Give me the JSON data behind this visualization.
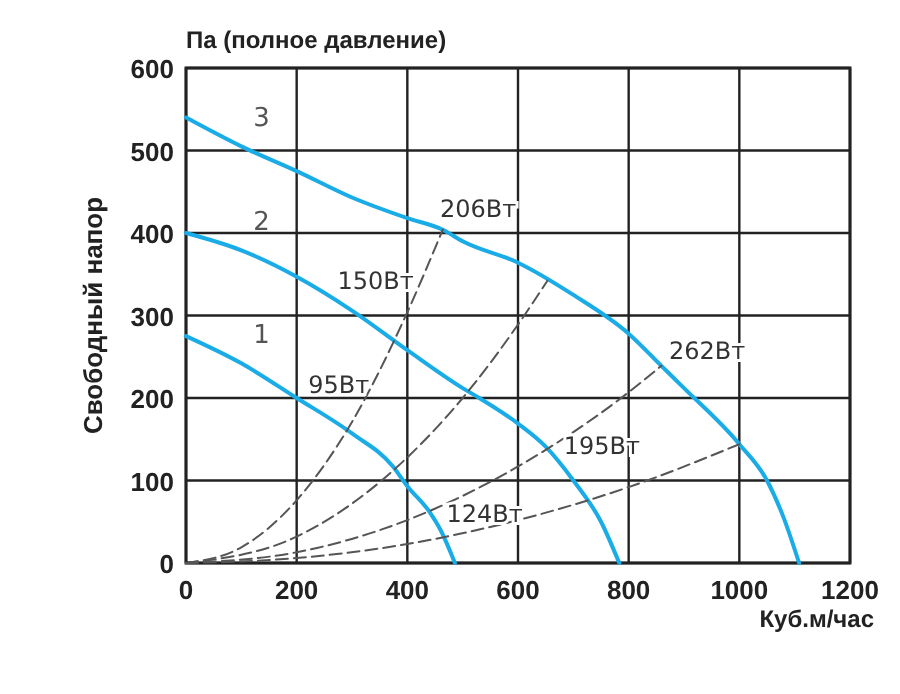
{
  "chart_data": {
    "type": "line",
    "title": "Па (полное давление)",
    "ylabel": "Свободный напор",
    "xlabel": "Куб.м/час",
    "xlim": [
      0,
      1200
    ],
    "xticks": [
      0,
      200,
      400,
      600,
      800,
      1000,
      1200
    ],
    "ylim": [
      0,
      600
    ],
    "yticks": [
      0,
      100,
      200,
      300,
      400,
      500,
      600
    ],
    "grid": true,
    "legend": false,
    "series": [
      {
        "name": "1",
        "color": "#1aace6",
        "x": [
          0,
          100,
          200,
          300,
          374,
          400,
          440,
          460,
          486
        ],
        "values": [
          275,
          242,
          200,
          157,
          117,
          93,
          62,
          40,
          0
        ]
      },
      {
        "name": "2",
        "color": "#1aace6",
        "x": [
          0,
          100,
          200,
          300,
          400,
          500,
          530,
          600,
          650,
          700,
          750,
          783
        ],
        "values": [
          400,
          379,
          347,
          306,
          258,
          212,
          200,
          169,
          141,
          100,
          50,
          0
        ]
      },
      {
        "name": "3",
        "color": "#1aace6",
        "x": [
          0,
          100,
          200,
          300,
          400,
          464,
          500,
          600,
          700,
          800,
          859,
          900,
          1000,
          1050,
          1080,
          1108
        ],
        "values": [
          540,
          505,
          475,
          443,
          418,
          404,
          390,
          364,
          325,
          278,
          239,
          212,
          144,
          100,
          55,
          0
        ]
      },
      {
        "color": "#555555",
        "line_style": "dashed",
        "x": [
          0,
          100,
          200,
          300,
          400,
          464
        ],
        "values": [
          0,
          19,
          76,
          171,
          304,
          404
        ]
      },
      {
        "color": "#555555",
        "line_style": "dashed",
        "x": [
          0,
          200,
          400,
          500,
          600,
          653
        ],
        "values": [
          0,
          32,
          128,
          200,
          289,
          342
        ]
      },
      {
        "color": "#555555",
        "line_style": "dashed",
        "x": [
          0,
          200,
          400,
          600,
          800,
          859
        ],
        "values": [
          0,
          13,
          52,
          117,
          207,
          239
        ]
      },
      {
        "color": "#555555",
        "line_style": "dashed",
        "x": [
          0,
          200,
          400,
          600,
          800,
          1000
        ],
        "values": [
          0,
          6,
          23,
          52,
          92,
          144
        ]
      }
    ],
    "annotations": [
      {
        "text": "95Вт",
        "x": 210,
        "y": 196
      },
      {
        "text": "150Вт",
        "x": 263,
        "y": 322
      },
      {
        "text": "206Вт",
        "x": 448,
        "y": 410
      },
      {
        "text": "124Вт",
        "x": 460,
        "y": 40
      },
      {
        "text": "195Вт",
        "x": 672,
        "y": 122
      },
      {
        "text": "262Вт",
        "x": 862,
        "y": 238
      }
    ]
  }
}
